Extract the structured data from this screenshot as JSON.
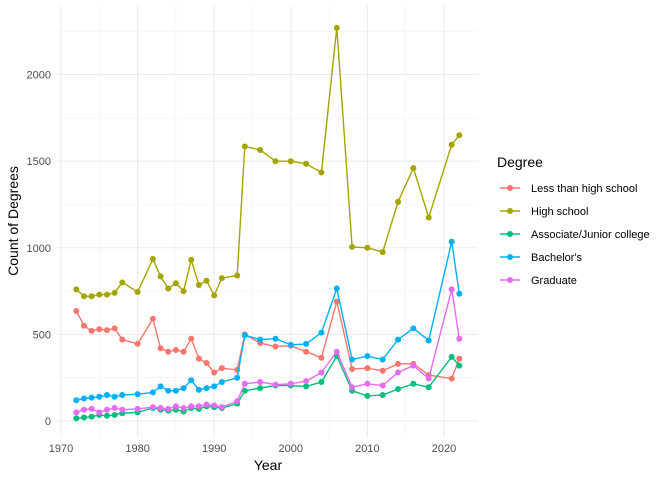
{
  "chart_data": {
    "type": "line",
    "title": "",
    "xlabel": "Year",
    "ylabel": "Count of Degrees",
    "xlim": [
      1970,
      2024
    ],
    "ylim": [
      0,
      2300
    ],
    "x_ticks": [
      1970,
      1980,
      1990,
      2000,
      2010,
      2020
    ],
    "y_ticks": [
      0,
      500,
      1000,
      1500,
      2000
    ],
    "grid": true,
    "legend_title": "Degree",
    "legend_position": "right",
    "x": [
      1972,
      1973,
      1974,
      1975,
      1976,
      1977,
      1978,
      1980,
      1982,
      1983,
      1984,
      1985,
      1986,
      1987,
      1988,
      1989,
      1990,
      1991,
      1993,
      1994,
      1996,
      1998,
      2000,
      2002,
      2004,
      2006,
      2008,
      2010,
      2012,
      2014,
      2016,
      2018,
      2021,
      2022
    ],
    "series": [
      {
        "name": "Less than high school",
        "color": "#F8766D",
        "values": [
          635,
          550,
          520,
          530,
          525,
          535,
          470,
          445,
          590,
          420,
          400,
          410,
          400,
          475,
          360,
          335,
          280,
          305,
          295,
          500,
          450,
          430,
          435,
          400,
          365,
          690,
          300,
          305,
          290,
          330,
          330,
          265,
          245,
          360
        ]
      },
      {
        "name": "High school",
        "color": "#A3A500",
        "values": [
          760,
          720,
          720,
          730,
          730,
          740,
          800,
          745,
          935,
          835,
          765,
          795,
          750,
          930,
          785,
          810,
          725,
          825,
          840,
          1585,
          1565,
          1500,
          1500,
          1485,
          1435,
          2270,
          1005,
          1000,
          975,
          1265,
          1460,
          1175,
          1595,
          1650
        ]
      },
      {
        "name": "Associate/Junior college",
        "color": "#00BF7D",
        "values": [
          15,
          20,
          25,
          35,
          30,
          35,
          45,
          50,
          75,
          65,
          60,
          65,
          55,
          75,
          70,
          85,
          80,
          75,
          100,
          175,
          190,
          205,
          205,
          200,
          225,
          375,
          175,
          145,
          150,
          185,
          215,
          195,
          370,
          320
        ]
      },
      {
        "name": "Bachelor's",
        "color": "#00B0F6",
        "values": [
          120,
          130,
          135,
          140,
          150,
          140,
          150,
          155,
          165,
          200,
          175,
          175,
          190,
          235,
          180,
          190,
          200,
          225,
          250,
          495,
          470,
          475,
          440,
          445,
          510,
          765,
          355,
          375,
          355,
          470,
          535,
          465,
          1035,
          735
        ]
      },
      {
        "name": "Graduate",
        "color": "#E76BF3",
        "values": [
          50,
          65,
          70,
          50,
          65,
          75,
          65,
          70,
          80,
          75,
          70,
          85,
          75,
          85,
          85,
          95,
          90,
          80,
          115,
          215,
          225,
          210,
          215,
          230,
          280,
          400,
          195,
          215,
          205,
          280,
          320,
          245,
          760,
          475
        ]
      }
    ]
  }
}
